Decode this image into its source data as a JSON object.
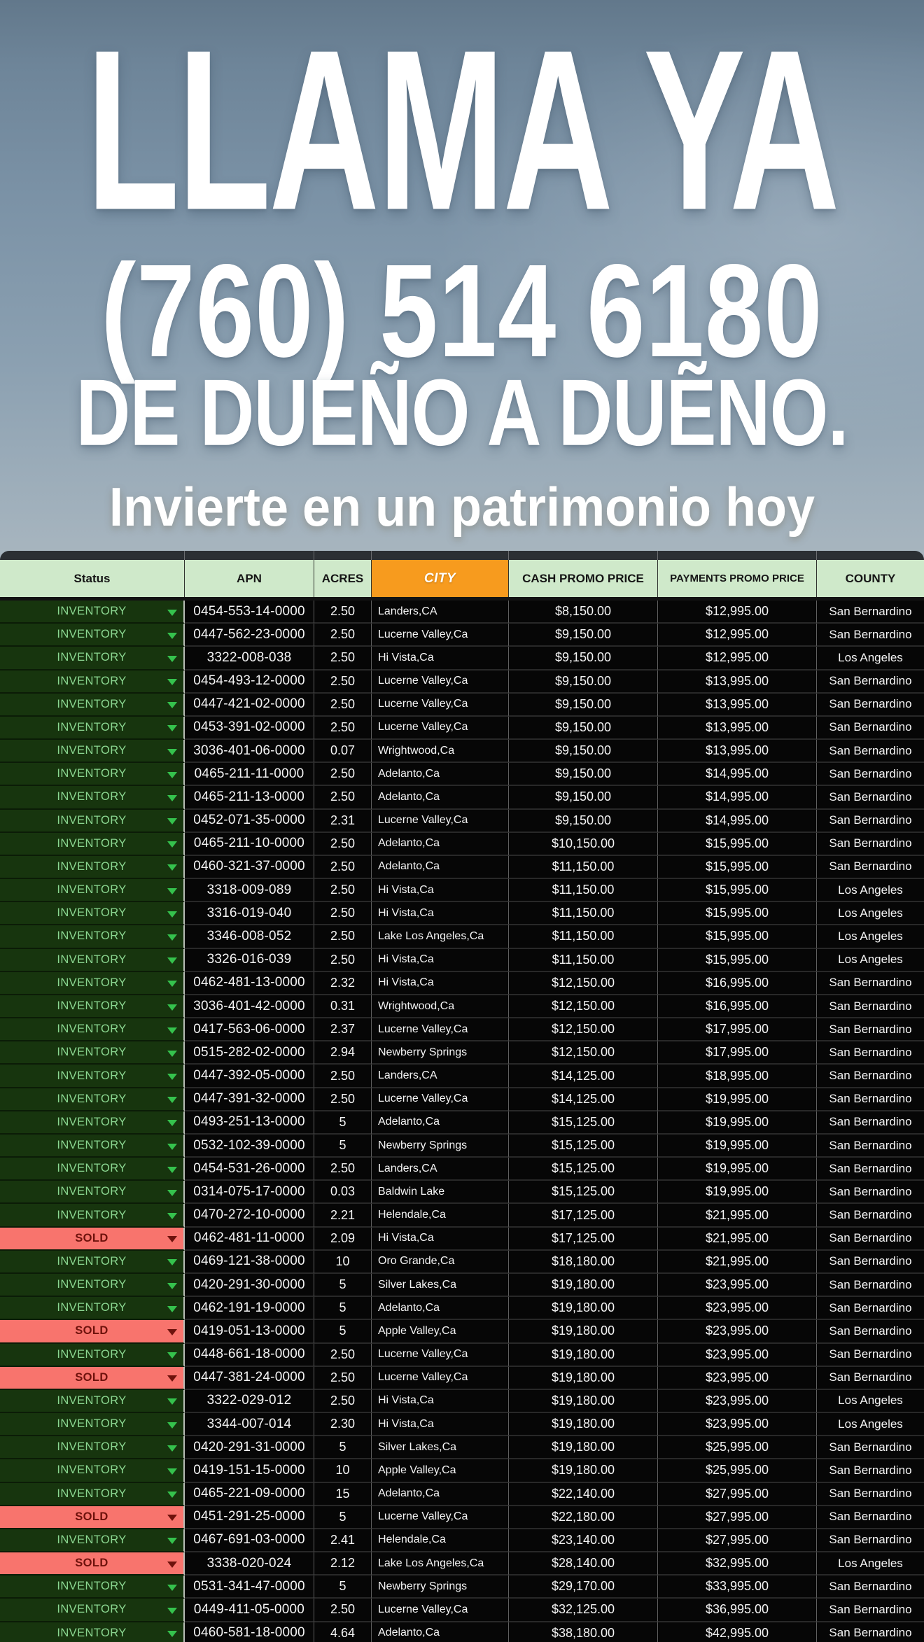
{
  "hero": {
    "title": "LLAMA YA",
    "phone": "(760) 514 6180",
    "subtitle": "DE DUEÑO A DUẼNO.",
    "tagline": "Invierte en un patrimonio hoy"
  },
  "colors": {
    "header_green": "#cfe9ca",
    "city_orange": "#f79b1e",
    "inventory_bg": "#17350e",
    "inventory_text": "#8bd791",
    "inventory_arrow": "#35c24d",
    "sold_bg": "#f8746d",
    "sold_text": "#6e120c"
  },
  "table": {
    "columns": [
      {
        "key": "status",
        "label": "Status"
      },
      {
        "key": "apn",
        "label": "APN"
      },
      {
        "key": "acres",
        "label": "ACRES"
      },
      {
        "key": "city",
        "label": "CITY"
      },
      {
        "key": "cash",
        "label": "CASH PROMO PRICE"
      },
      {
        "key": "payments",
        "label": "PAYMENTS PROMO PRICE"
      },
      {
        "key": "county",
        "label": "COUNTY"
      }
    ],
    "rows": [
      {
        "status": "INVENTORY",
        "apn": "0454-553-14-0000",
        "acres": "2.50",
        "city": "Landers,CA",
        "cash": "$8,150.00",
        "payments": "$12,995.00",
        "county": "San Bernardino"
      },
      {
        "status": "INVENTORY",
        "apn": "0447-562-23-0000",
        "acres": "2.50",
        "city": "Lucerne Valley,Ca",
        "cash": "$9,150.00",
        "payments": "$12,995.00",
        "county": "San Bernardino"
      },
      {
        "status": "INVENTORY",
        "apn": "3322-008-038",
        "acres": "2.50",
        "city": "Hi Vista,Ca",
        "cash": "$9,150.00",
        "payments": "$12,995.00",
        "county": "Los Angeles"
      },
      {
        "status": "INVENTORY",
        "apn": "0454-493-12-0000",
        "acres": "2.50",
        "city": "Lucerne Valley,Ca",
        "cash": "$9,150.00",
        "payments": "$13,995.00",
        "county": "San Bernardino"
      },
      {
        "status": "INVENTORY",
        "apn": "0447-421-02-0000",
        "acres": "2.50",
        "city": "Lucerne Valley,Ca",
        "cash": "$9,150.00",
        "payments": "$13,995.00",
        "county": "San Bernardino"
      },
      {
        "status": "INVENTORY",
        "apn": "0453-391-02-0000",
        "acres": "2.50",
        "city": "Lucerne Valley,Ca",
        "cash": "$9,150.00",
        "payments": "$13,995.00",
        "county": "San Bernardino"
      },
      {
        "status": "INVENTORY",
        "apn": "3036-401-06-0000",
        "acres": "0.07",
        "city": "Wrightwood,Ca",
        "cash": "$9,150.00",
        "payments": "$13,995.00",
        "county": "San Bernardino"
      },
      {
        "status": "INVENTORY",
        "apn": "0465-211-11-0000",
        "acres": "2.50",
        "city": "Adelanto,Ca",
        "cash": "$9,150.00",
        "payments": "$14,995.00",
        "county": "San Bernardino"
      },
      {
        "status": "INVENTORY",
        "apn": "0465-211-13-0000",
        "acres": "2.50",
        "city": "Adelanto,Ca",
        "cash": "$9,150.00",
        "payments": "$14,995.00",
        "county": "San Bernardino"
      },
      {
        "status": "INVENTORY",
        "apn": "0452-071-35-0000",
        "acres": "2.31",
        "city": "Lucerne Valley,Ca",
        "cash": "$9,150.00",
        "payments": "$14,995.00",
        "county": "San Bernardino"
      },
      {
        "status": "INVENTORY",
        "apn": "0465-211-10-0000",
        "acres": "2.50",
        "city": "Adelanto,Ca",
        "cash": "$10,150.00",
        "payments": "$15,995.00",
        "county": "San Bernardino"
      },
      {
        "status": "INVENTORY",
        "apn": "0460-321-37-0000",
        "acres": "2.50",
        "city": "Adelanto,Ca",
        "cash": "$11,150.00",
        "payments": "$15,995.00",
        "county": "San Bernardino"
      },
      {
        "status": "INVENTORY",
        "apn": "3318-009-089",
        "acres": "2.50",
        "city": "Hi Vista,Ca",
        "cash": "$11,150.00",
        "payments": "$15,995.00",
        "county": "Los Angeles"
      },
      {
        "status": "INVENTORY",
        "apn": "3316-019-040",
        "acres": "2.50",
        "city": "Hi Vista,Ca",
        "cash": "$11,150.00",
        "payments": "$15,995.00",
        "county": "Los Angeles"
      },
      {
        "status": "INVENTORY",
        "apn": "3346-008-052",
        "acres": "2.50",
        "city": "Lake Los Angeles,Ca",
        "cash": "$11,150.00",
        "payments": "$15,995.00",
        "county": "Los Angeles"
      },
      {
        "status": "INVENTORY",
        "apn": "3326-016-039",
        "acres": "2.50",
        "city": "Hi Vista,Ca",
        "cash": "$11,150.00",
        "payments": "$15,995.00",
        "county": "Los Angeles"
      },
      {
        "status": "INVENTORY",
        "apn": "0462-481-13-0000",
        "acres": "2.32",
        "city": "Hi Vista,Ca",
        "cash": "$12,150.00",
        "payments": "$16,995.00",
        "county": "San Bernardino"
      },
      {
        "status": "INVENTORY",
        "apn": "3036-401-42-0000",
        "acres": "0.31",
        "city": "Wrightwood,Ca",
        "cash": "$12,150.00",
        "payments": "$16,995.00",
        "county": "San Bernardino"
      },
      {
        "status": "INVENTORY",
        "apn": "0417-563-06-0000",
        "acres": "2.37",
        "city": "Lucerne Valley,Ca",
        "cash": "$12,150.00",
        "payments": "$17,995.00",
        "county": "San Bernardino"
      },
      {
        "status": "INVENTORY",
        "apn": "0515-282-02-0000",
        "acres": "2.94",
        "city": "Newberry Springs",
        "cash": "$12,150.00",
        "payments": "$17,995.00",
        "county": "San Bernardino"
      },
      {
        "status": "INVENTORY",
        "apn": "0447-392-05-0000",
        "acres": "2.50",
        "city": "Landers,CA",
        "cash": "$14,125.00",
        "payments": "$18,995.00",
        "county": "San Bernardino"
      },
      {
        "status": "INVENTORY",
        "apn": "0447-391-32-0000",
        "acres": "2.50",
        "city": "Lucerne Valley,Ca",
        "cash": "$14,125.00",
        "payments": "$19,995.00",
        "county": "San Bernardino"
      },
      {
        "status": "INVENTORY",
        "apn": "0493-251-13-0000",
        "acres": "5",
        "city": "Adelanto,Ca",
        "cash": "$15,125.00",
        "payments": "$19,995.00",
        "county": "San Bernardino"
      },
      {
        "status": "INVENTORY",
        "apn": "0532-102-39-0000",
        "acres": "5",
        "city": "Newberry Springs",
        "cash": "$15,125.00",
        "payments": "$19,995.00",
        "county": "San Bernardino"
      },
      {
        "status": "INVENTORY",
        "apn": "0454-531-26-0000",
        "acres": "2.50",
        "city": "Landers,CA",
        "cash": "$15,125.00",
        "payments": "$19,995.00",
        "county": "San Bernardino"
      },
      {
        "status": "INVENTORY",
        "apn": "0314-075-17-0000",
        "acres": "0.03",
        "city": "Baldwin Lake",
        "cash": "$15,125.00",
        "payments": "$19,995.00",
        "county": "San Bernardino"
      },
      {
        "status": "INVENTORY",
        "apn": "0470-272-10-0000",
        "acres": "2.21",
        "city": "Helendale,Ca",
        "cash": "$17,125.00",
        "payments": "$21,995.00",
        "county": "San Bernardino"
      },
      {
        "status": "SOLD",
        "apn": "0462-481-11-0000",
        "acres": "2.09",
        "city": "Hi Vista,Ca",
        "cash": "$17,125.00",
        "payments": "$21,995.00",
        "county": "San Bernardino"
      },
      {
        "status": "INVENTORY",
        "apn": "0469-121-38-0000",
        "acres": "10",
        "city": "Oro Grande,Ca",
        "cash": "$18,180.00",
        "payments": "$21,995.00",
        "county": "San Bernardino"
      },
      {
        "status": "INVENTORY",
        "apn": "0420-291-30-0000",
        "acres": "5",
        "city": "Silver Lakes,Ca",
        "cash": "$19,180.00",
        "payments": "$23,995.00",
        "county": "San Bernardino"
      },
      {
        "status": "INVENTORY",
        "apn": "0462-191-19-0000",
        "acres": "5",
        "city": "Adelanto,Ca",
        "cash": "$19,180.00",
        "payments": "$23,995.00",
        "county": "San Bernardino"
      },
      {
        "status": "SOLD",
        "apn": "0419-051-13-0000",
        "acres": "5",
        "city": "Apple Valley,Ca",
        "cash": "$19,180.00",
        "payments": "$23,995.00",
        "county": "San Bernardino"
      },
      {
        "status": "INVENTORY",
        "apn": "0448-661-18-0000",
        "acres": "2.50",
        "city": "Lucerne Valley,Ca",
        "cash": "$19,180.00",
        "payments": "$23,995.00",
        "county": "San Bernardino"
      },
      {
        "status": "SOLD",
        "apn": "0447-381-24-0000",
        "acres": "2.50",
        "city": "Lucerne Valley,Ca",
        "cash": "$19,180.00",
        "payments": "$23,995.00",
        "county": "San Bernardino"
      },
      {
        "status": "INVENTORY",
        "apn": "3322-029-012",
        "acres": "2.50",
        "city": "Hi Vista,Ca",
        "cash": "$19,180.00",
        "payments": "$23,995.00",
        "county": "Los Angeles"
      },
      {
        "status": "INVENTORY",
        "apn": "3344-007-014",
        "acres": "2.30",
        "city": "Hi Vista,Ca",
        "cash": "$19,180.00",
        "payments": "$23,995.00",
        "county": "Los Angeles"
      },
      {
        "status": "INVENTORY",
        "apn": "0420-291-31-0000",
        "acres": "5",
        "city": "Silver Lakes,Ca",
        "cash": "$19,180.00",
        "payments": "$25,995.00",
        "county": "San Bernardino"
      },
      {
        "status": "INVENTORY",
        "apn": "0419-151-15-0000",
        "acres": "10",
        "city": "Apple Valley,Ca",
        "cash": "$19,180.00",
        "payments": "$25,995.00",
        "county": "San Bernardino"
      },
      {
        "status": "INVENTORY",
        "apn": "0465-221-09-0000",
        "acres": "15",
        "city": "Adelanto,Ca",
        "cash": "$22,140.00",
        "payments": "$27,995.00",
        "county": "San Bernardino"
      },
      {
        "status": "SOLD",
        "apn": "0451-291-25-0000",
        "acres": "5",
        "city": "Lucerne Valley,Ca",
        "cash": "$22,180.00",
        "payments": "$27,995.00",
        "county": "San Bernardino"
      },
      {
        "status": "INVENTORY",
        "apn": "0467-691-03-0000",
        "acres": "2.41",
        "city": "Helendale,Ca",
        "cash": "$23,140.00",
        "payments": "$27,995.00",
        "county": "San Bernardino"
      },
      {
        "status": "SOLD",
        "apn": "3338-020-024",
        "acres": "2.12",
        "city": "Lake Los Angeles,Ca",
        "cash": "$28,140.00",
        "payments": "$32,995.00",
        "county": "Los Angeles"
      },
      {
        "status": "INVENTORY",
        "apn": "0531-341-47-0000",
        "acres": "5",
        "city": "Newberry Springs",
        "cash": "$29,170.00",
        "payments": "$33,995.00",
        "county": "San Bernardino"
      },
      {
        "status": "INVENTORY",
        "apn": "0449-411-05-0000",
        "acres": "2.50",
        "city": "Lucerne Valley,Ca",
        "cash": "$32,125.00",
        "payments": "$36,995.00",
        "county": "San Bernardino"
      },
      {
        "status": "INVENTORY",
        "apn": "0460-581-18-0000",
        "acres": "4.64",
        "city": "Adelanto,Ca",
        "cash": "$38,180.00",
        "payments": "$42,995.00",
        "county": "San Bernardino"
      }
    ]
  }
}
